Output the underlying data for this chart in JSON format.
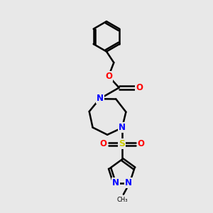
{
  "bg_color": "#e8e8e8",
  "atom_colors": {
    "C": "#000000",
    "N": "#0000ff",
    "O": "#ff0000",
    "S": "#cccc00",
    "H": "#000000"
  },
  "bond_color": "#000000",
  "bond_width": 1.8,
  "figsize": [
    3.0,
    3.0
  ],
  "dpi": 100
}
